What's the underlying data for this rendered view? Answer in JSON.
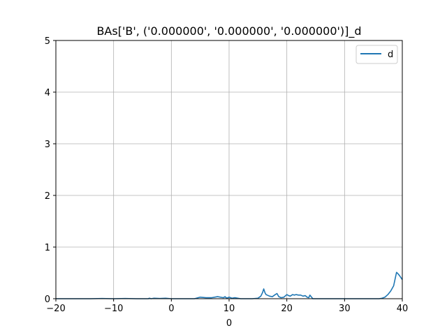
{
  "chart_data": {
    "type": "line",
    "title": "BAs['B', ('0.000000', '0.000000', '0.000000')]_d",
    "xlabel": "0",
    "ylabel": "",
    "xlim": [
      -20,
      40
    ],
    "ylim": [
      0,
      5
    ],
    "xticks": [
      -20,
      -10,
      0,
      10,
      20,
      30,
      40
    ],
    "yticks": [
      0,
      1,
      2,
      3,
      4,
      5
    ],
    "grid": true,
    "legend_position": "top-right",
    "series": [
      {
        "name": "d",
        "color": "#1f77b4",
        "x": [
          -20,
          -14,
          -12,
          -10,
          -8,
          -6,
          -4,
          -3.8,
          -3.5,
          -3,
          -2,
          -1,
          0,
          2,
          4,
          5,
          6,
          7,
          7.5,
          8,
          9,
          9.3,
          9.6,
          10,
          10.5,
          11,
          12,
          14,
          15,
          15.5,
          15.8,
          16,
          16.2,
          16.4,
          16.6,
          17,
          17.5,
          18,
          18.3,
          18.6,
          19,
          19.5,
          20,
          20.3,
          20.6,
          21,
          21.3,
          21.6,
          22,
          22.4,
          22.8,
          23.2,
          23.5,
          23.8,
          24,
          24.5,
          26,
          30,
          34,
          36,
          36.5,
          37,
          37.5,
          38,
          38.5,
          39,
          39.2,
          39.5,
          40
        ],
        "y": [
          0,
          0,
          0.005,
          0,
          0.005,
          0,
          0,
          0.01,
          0,
          0.01,
          0.005,
          0.01,
          0,
          0,
          0,
          0.03,
          0.02,
          0.02,
          0.03,
          0.04,
          0.02,
          0.04,
          0.01,
          0.03,
          0.01,
          0.02,
          0,
          0,
          0.01,
          0.05,
          0.12,
          0.19,
          0.12,
          0.08,
          0.07,
          0.05,
          0.04,
          0.08,
          0.1,
          0.04,
          0.02,
          0.03,
          0.08,
          0.06,
          0.05,
          0.08,
          0.07,
          0.08,
          0.07,
          0.07,
          0.05,
          0.06,
          0.03,
          0.02,
          0.07,
          0,
          0,
          0,
          0,
          0,
          0.01,
          0.03,
          0.08,
          0.15,
          0.25,
          0.51,
          0.49,
          0.45,
          0.37
        ]
      }
    ]
  }
}
